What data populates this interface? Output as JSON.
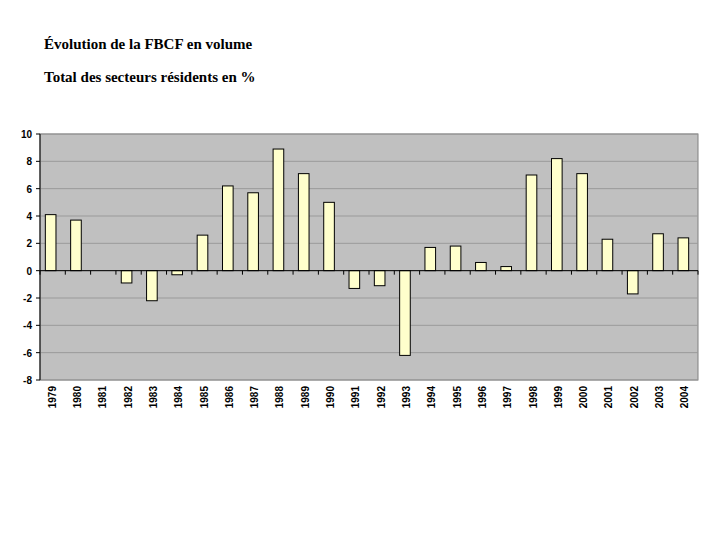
{
  "chart_data": {
    "type": "bar",
    "title": "Évolution de la FBCF en volume",
    "subtitle": "Total des secteurs résidents en %",
    "categories": [
      "1979",
      "1980",
      "1981",
      "1982",
      "1983",
      "1984",
      "1985",
      "1986",
      "1987",
      "1988",
      "1989",
      "1990",
      "1991",
      "1992",
      "1993",
      "1994",
      "1995",
      "1996",
      "1997",
      "1998",
      "1999",
      "2000",
      "2001",
      "2002",
      "2003",
      "2004"
    ],
    "values": [
      4.1,
      3.7,
      0,
      -0.9,
      -2.2,
      -0.3,
      2.6,
      6.2,
      5.7,
      8.9,
      7.1,
      5.0,
      -1.3,
      -1.1,
      -6.2,
      1.7,
      1.8,
      0.6,
      0.3,
      7.0,
      8.2,
      7.1,
      2.3,
      -1.7,
      2.7,
      2.4
    ],
    "color": "#ffffcc",
    "ylim": [
      -8,
      10
    ],
    "yticks": [
      -8,
      -6,
      -4,
      -2,
      0,
      2,
      4,
      6,
      8,
      10
    ],
    "grid": true
  }
}
